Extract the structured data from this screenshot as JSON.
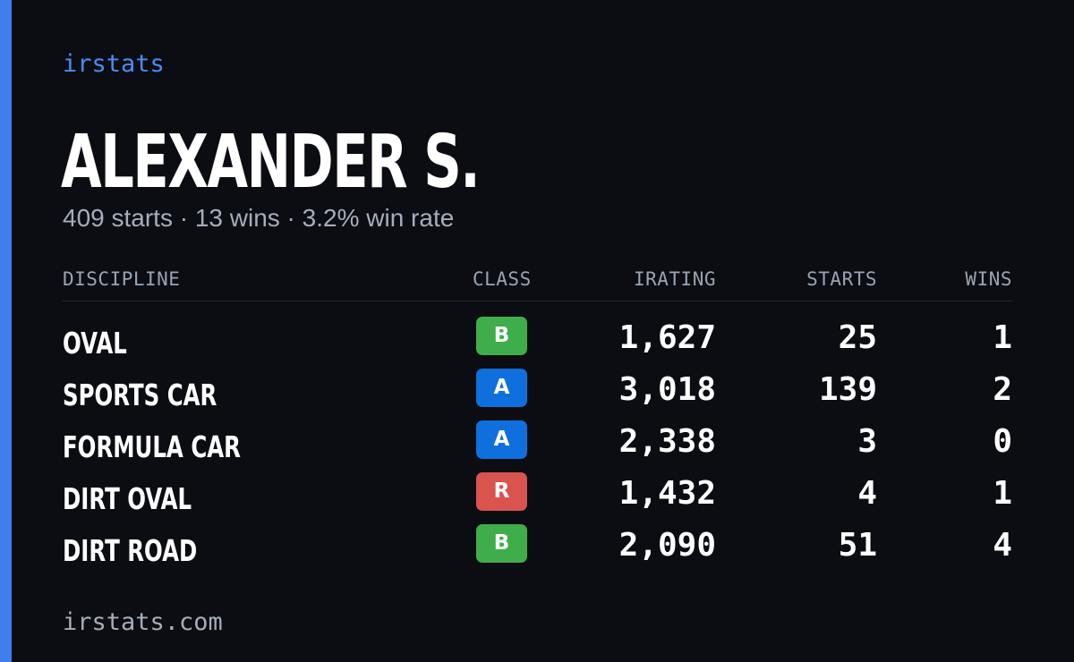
{
  "brand": "irstats",
  "driver": {
    "name": "ALEXANDER S.",
    "summary": "409 starts · 13 wins · 3.2% win rate"
  },
  "table": {
    "headers": {
      "discipline": "DISCIPLINE",
      "class": "CLASS",
      "irating": "IRATING",
      "starts": "STARTS",
      "wins": "WINS"
    },
    "rows": [
      {
        "discipline": "OVAL",
        "class": "B",
        "class_color": "#3fae4a",
        "irating": "1,627",
        "starts": "25",
        "wins": "1"
      },
      {
        "discipline": "SPORTS CAR",
        "class": "A",
        "class_color": "#0f6fdc",
        "irating": "3,018",
        "starts": "139",
        "wins": "2"
      },
      {
        "discipline": "FORMULA CAR",
        "class": "A",
        "class_color": "#0f6fdc",
        "irating": "2,338",
        "starts": "3",
        "wins": "0"
      },
      {
        "discipline": "DIRT OVAL",
        "class": "R",
        "class_color": "#d9534f",
        "irating": "1,432",
        "starts": "4",
        "wins": "1"
      },
      {
        "discipline": "DIRT ROAD",
        "class": "B",
        "class_color": "#3fae4a",
        "irating": "2,090",
        "starts": "51",
        "wins": "4"
      }
    ]
  },
  "footer": "irstats.com",
  "colors": {
    "background": "#0b0d13",
    "accent": "#3d7fee",
    "brand_text": "#4a8cf2",
    "muted_text": "#a6adbb"
  }
}
